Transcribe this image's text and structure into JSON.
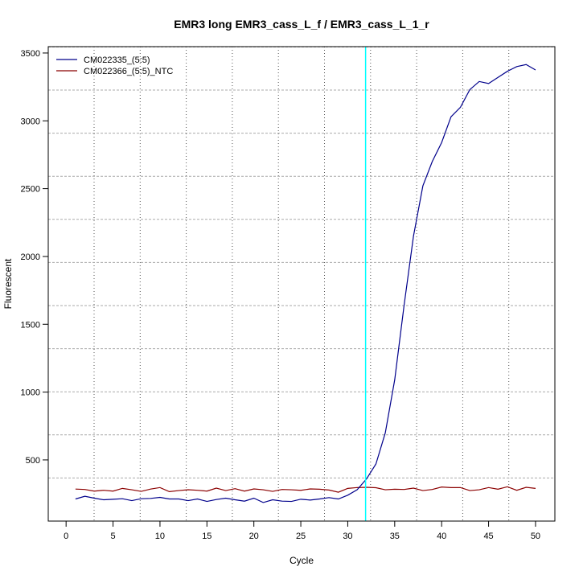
{
  "chart_data": {
    "type": "line",
    "title": "EMR3 long EMR3_cass_L_f / EMR3_cass_L_1_r",
    "xlabel": "Cycle",
    "ylabel": "Fluorescent",
    "xlim": [
      -1.9,
      52.06
    ],
    "ylim": [
      49,
      3547
    ],
    "xticks": [
      0,
      5,
      10,
      15,
      20,
      25,
      30,
      35,
      40,
      45,
      50
    ],
    "yticks": [
      500,
      1000,
      1500,
      2000,
      2500,
      3000,
      3500
    ],
    "grid": "dotted",
    "legend_position": "top-left",
    "threshold_cycle": 31.9,
    "threshold_color": "#00ffff",
    "x": [
      1,
      2,
      3,
      4,
      5,
      6,
      7,
      8,
      9,
      10,
      11,
      12,
      13,
      14,
      15,
      16,
      17,
      18,
      19,
      20,
      21,
      22,
      23,
      24,
      25,
      26,
      27,
      28,
      29,
      30,
      31,
      32,
      33,
      34,
      35,
      36,
      37,
      38,
      39,
      40,
      41,
      42,
      43,
      44,
      45,
      46,
      47,
      48,
      49,
      50
    ],
    "series": [
      {
        "name": "CM022335_(5:5)",
        "color": "#00008b",
        "values": [
          212,
          232,
          218,
          206,
          210,
          214,
          200,
          214,
          216,
          224,
          212,
          212,
          200,
          212,
          194,
          208,
          218,
          206,
          196,
          218,
          186,
          206,
          196,
          194,
          210,
          204,
          212,
          222,
          212,
          240,
          280,
          360,
          470,
          700,
          1090,
          1640,
          2150,
          2520,
          2700,
          2840,
          3030,
          3100,
          3230,
          3290,
          3275,
          3320,
          3365,
          3400,
          3415,
          3375
        ]
      },
      {
        "name": "CM022366_(5:5)_NTC",
        "color": "#8b0000",
        "values": [
          285,
          282,
          270,
          276,
          270,
          290,
          280,
          268,
          285,
          296,
          266,
          274,
          280,
          276,
          270,
          292,
          274,
          288,
          270,
          286,
          280,
          268,
          282,
          280,
          276,
          286,
          284,
          278,
          262,
          290,
          296,
          298,
          295,
          280,
          284,
          282,
          292,
          274,
          282,
          300,
          296,
          296,
          274,
          280,
          296,
          284,
          302,
          276,
          298,
          290
        ]
      }
    ]
  }
}
